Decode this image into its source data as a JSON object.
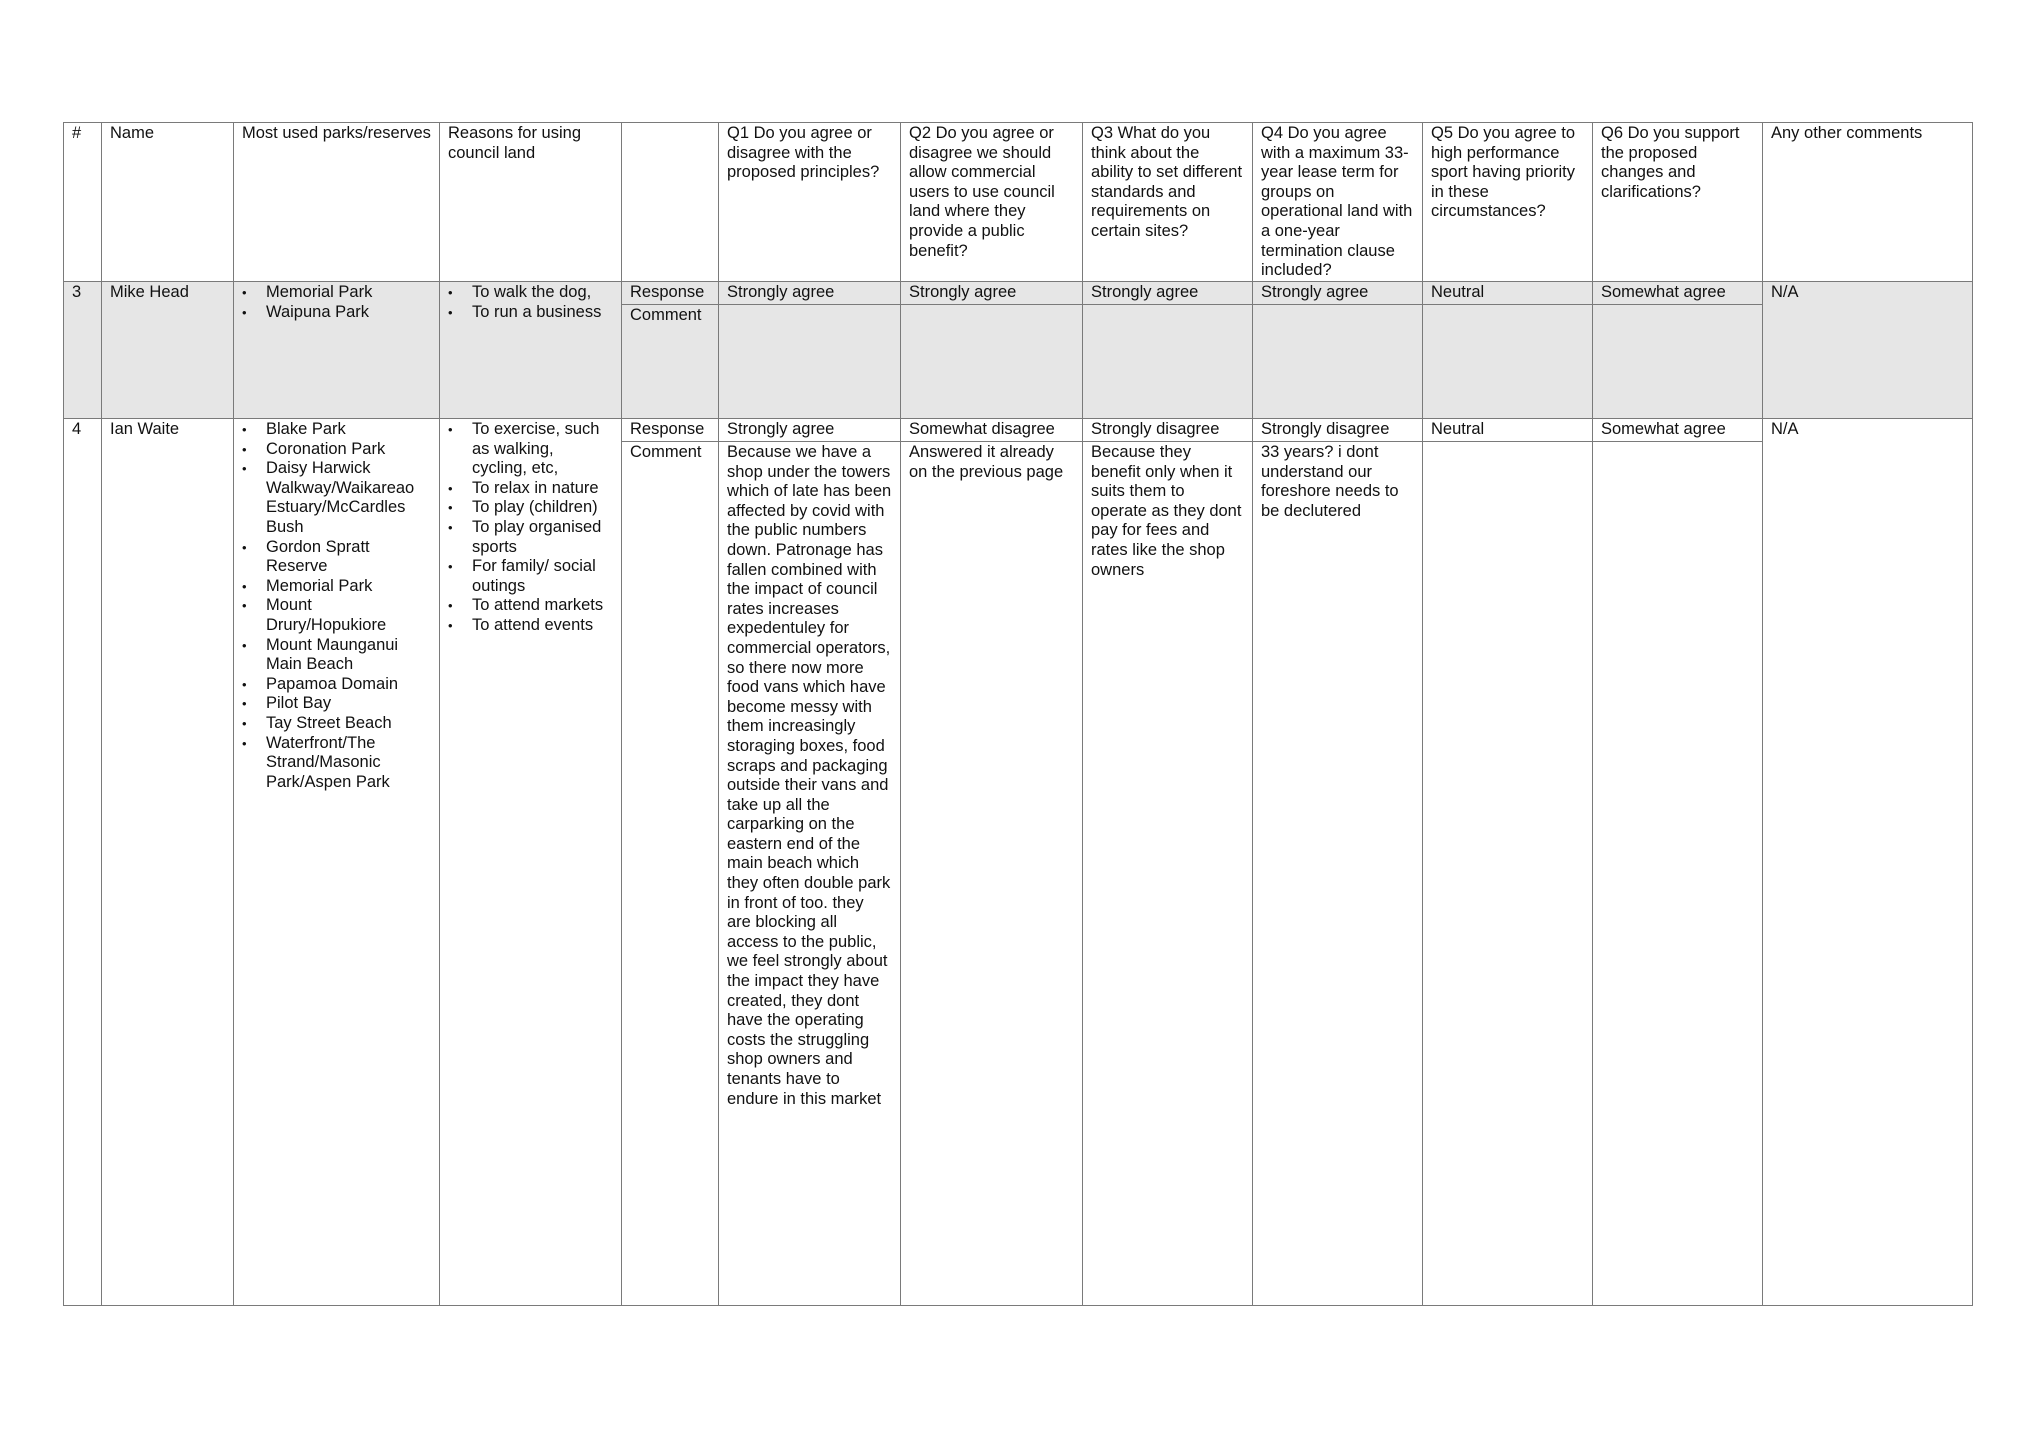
{
  "table": {
    "headers": [
      "#",
      "Name",
      "Most used parks/reserves",
      "Reasons for using council land",
      "",
      "Q1 Do you agree or disagree with the proposed principles?",
      "Q2 Do you agree or disagree we should allow commercial users to use council land where they provide a public benefit?",
      "Q3 What do you think about the ability to set different standards and requirements on certain sites?",
      "Q4 Do you agree with a maximum 33-year lease term for groups on operational land with a one-year termination clause included?",
      "Q5 Do you agree to high performance sport having priority in these circumstances?",
      "Q6 Do you support the proposed changes and clarifications?",
      "Any other comments"
    ],
    "rows": [
      {
        "number": "3",
        "name": "Mike Head",
        "parks": [
          "Memorial Park",
          "Waipuna Park"
        ],
        "reasons": [
          "To walk the dog,",
          "To run a business"
        ],
        "response_label": "Response",
        "comment_label": "Comment",
        "responses": [
          "Strongly agree",
          "Strongly agree",
          "Strongly agree",
          "Strongly agree",
          "Neutral",
          "Somewhat agree"
        ],
        "comments": [
          "",
          "",
          "",
          "",
          "",
          ""
        ],
        "other_comments": "N/A"
      },
      {
        "number": "4",
        "name": "Ian Waite",
        "parks": [
          "Blake Park",
          "Coronation Park",
          "Daisy Harwick Walkway/Waikareao Estuary/McCardles Bush",
          "Gordon Spratt Reserve",
          "Memorial Park",
          "Mount Drury/Hopukiore",
          "Mount Maunganui Main Beach",
          "Papamoa Domain",
          "Pilot Bay",
          "Tay Street Beach",
          "Waterfront/The Strand/Masonic Park/Aspen Park"
        ],
        "reasons": [
          "To exercise, such as walking, cycling, etc,",
          "To relax in nature",
          "To play (children)",
          "To play organised sports",
          "For family/ social outings",
          "To attend markets",
          "To attend events"
        ],
        "response_label": "Response",
        "comment_label": "Comment",
        "responses": [
          "Strongly agree",
          "Somewhat disagree",
          "Strongly disagree",
          "Strongly disagree",
          "Neutral",
          "Somewhat agree"
        ],
        "comments": [
          "Because we have a shop under the towers which of late has been affected by covid with the public numbers down. Patronage has fallen combined with the impact of council rates increases expedentuley for commercial operators, so there now more food vans which have become messy with them increasingly storaging boxes, food scraps  and packaging outside their vans and take up all the carparking on the eastern end of the main beach which they often double park in front of too. they are blocking all access to the public, we feel strongly about the impact they have created, they dont have the operating costs the struggling shop owners and tenants have to endure in this market",
          "Answered it already on the previous page",
          "Because they benefit only when it suits them to operate as they dont pay for fees and rates like the shop owners",
          "33 years? i dont understand our foreshore needs to be declutered",
          "",
          ""
        ],
        "other_comments": "N/A"
      }
    ]
  }
}
